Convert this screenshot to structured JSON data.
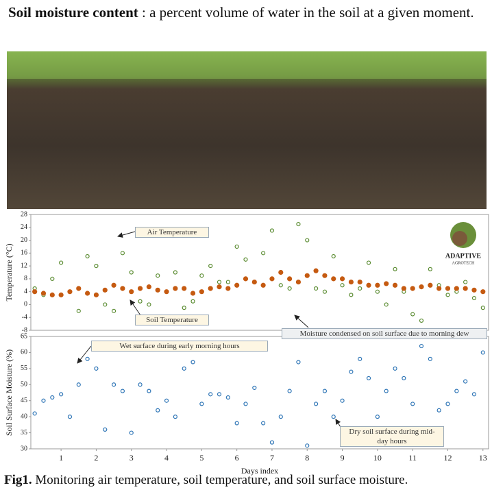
{
  "header": {
    "title_bold": "Soil moisture content",
    "title_rest": " : a percent volume of water in the soil at a given moment."
  },
  "logo": {
    "name": "ADAPTIVE",
    "tagline": "AGROTECH"
  },
  "chart_data": [
    {
      "type": "scatter",
      "ylabel": "Temperature (°C)",
      "annotations": [
        "Air Temperature",
        "Soil Temperature",
        "Moisture condensed on soil surface due to morning dew"
      ],
      "xlim": [
        0.14,
        13.16
      ],
      "ylim": [
        -8,
        28
      ],
      "yticks": [
        -8,
        -4,
        0,
        4,
        8,
        12,
        16,
        20,
        24,
        28
      ],
      "x": [
        0.25,
        0.5,
        0.75,
        1,
        1.25,
        1.5,
        1.75,
        2,
        2.25,
        2.5,
        2.75,
        3,
        3.25,
        3.5,
        3.75,
        4,
        4.25,
        4.5,
        4.75,
        5,
        5.25,
        5.5,
        5.75,
        6,
        6.25,
        6.5,
        6.75,
        7,
        7.25,
        7.5,
        7.75,
        8,
        8.25,
        8.5,
        8.75,
        9,
        9.25,
        9.5,
        9.75,
        10,
        10.25,
        10.5,
        10.75,
        11,
        11.25,
        11.5,
        11.75,
        12,
        12.25,
        12.5,
        12.75,
        13
      ],
      "series": [
        {
          "name": "Air Temperature",
          "color": "#5b8c32",
          "filled": false,
          "values": [
            5,
            3,
            8,
            13,
            4,
            -2,
            15,
            12,
            0,
            -2,
            16,
            10,
            1,
            0,
            9,
            4,
            10,
            -1,
            1,
            9,
            12,
            7,
            7,
            18,
            14,
            7,
            16,
            23,
            6,
            5,
            25,
            20,
            5,
            4,
            15,
            6,
            3,
            5,
            13,
            4,
            0,
            11,
            4,
            -3,
            -5,
            11,
            6,
            3,
            4,
            7,
            2,
            -1
          ]
        },
        {
          "name": "Soil Temperature",
          "color": "#c55a11",
          "filled": true,
          "values": [
            4,
            3.5,
            3,
            3,
            4,
            5,
            3.5,
            3,
            4.5,
            6,
            5,
            4,
            5,
            5.5,
            4.5,
            4,
            5,
            5,
            3.5,
            4,
            5,
            5.5,
            5,
            6,
            8,
            7,
            6,
            8,
            10,
            8,
            7,
            9,
            10.5,
            9,
            8,
            8,
            7,
            7,
            6,
            6,
            6.5,
            6,
            5,
            5,
            5.5,
            6,
            5,
            5,
            5,
            5,
            4.5,
            4
          ]
        }
      ]
    },
    {
      "type": "scatter",
      "ylabel": "Soil Surface Moisture (%)",
      "xlabel": "Days index",
      "annotations": [
        "Wet surface during early morning hours",
        "Dry soil surface during mid-day hours"
      ],
      "xlim": [
        0.14,
        13.16
      ],
      "xticks": [
        1,
        2,
        3,
        4,
        5,
        6,
        7,
        8,
        9,
        10,
        11,
        12,
        13
      ],
      "ylim": [
        30,
        65
      ],
      "yticks": [
        30,
        35,
        40,
        45,
        50,
        55,
        60,
        65
      ],
      "x": [
        0.25,
        0.5,
        0.75,
        1,
        1.25,
        1.5,
        1.75,
        2,
        2.25,
        2.5,
        2.75,
        3,
        3.25,
        3.5,
        3.75,
        4,
        4.25,
        4.5,
        4.75,
        5,
        5.25,
        5.5,
        5.75,
        6,
        6.25,
        6.5,
        6.75,
        7,
        7.25,
        7.5,
        7.75,
        8,
        8.25,
        8.5,
        8.75,
        9,
        9.25,
        9.5,
        9.75,
        10,
        10.25,
        10.5,
        10.75,
        11,
        11.25,
        11.5,
        11.75,
        12,
        12.25,
        12.5,
        12.75,
        13
      ],
      "series": [
        {
          "name": "Soil Surface Moisture",
          "color": "#2e75b6",
          "filled": false,
          "values": [
            41,
            45,
            46,
            47,
            40,
            50,
            58,
            55,
            36,
            50,
            48,
            35,
            50,
            48,
            42,
            45,
            40,
            55,
            57,
            44,
            47,
            47,
            46,
            38,
            44,
            49,
            38,
            32,
            40,
            48,
            57,
            31,
            44,
            48,
            40,
            45,
            54,
            58,
            52,
            40,
            48,
            55,
            52,
            44,
            62,
            58,
            42,
            44,
            48,
            51,
            47,
            60
          ]
        }
      ]
    }
  ],
  "caption": {
    "bold": "Fig1.",
    "rest": " Monitoring air temperature, soil temperature, and soil surface moisture."
  }
}
